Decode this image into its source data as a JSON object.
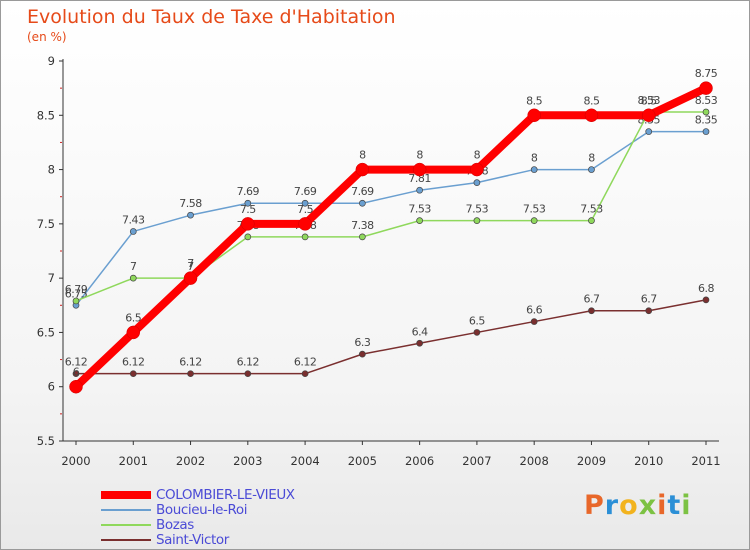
{
  "header": {
    "title": "Evolution du Taux de Taxe d'Habitation",
    "unit_label": "(en %)"
  },
  "brand": {
    "text": "Proxiti",
    "colors": [
      "#e8672a",
      "#2b8fd6",
      "#f2b31e",
      "#7cc243",
      "#e8672a",
      "#2b8fd6",
      "#7cc243"
    ]
  },
  "chart_data": {
    "type": "line",
    "title": "Evolution du Taux de Taxe d'Habitation",
    "ylabel": "(en %)",
    "x": [
      "2000",
      "2001",
      "2002",
      "2003",
      "2004",
      "2005",
      "2006",
      "2007",
      "2008",
      "2009",
      "2010",
      "2011"
    ],
    "ylim": [
      5.5,
      9
    ],
    "yticks": [
      "5.5",
      "6",
      "6.5",
      "7",
      "7.5",
      "8",
      "8.5",
      "9"
    ],
    "grid": false,
    "legend_position": "bottom-left",
    "series": [
      {
        "name": "COLOMBIER-LE-VIEUX",
        "color": "#ff0000",
        "emphasis": true,
        "values": [
          6,
          6.5,
          7,
          7.5,
          7.5,
          8,
          8,
          8,
          8.5,
          8.5,
          8.5,
          8.75
        ],
        "labels": [
          "6",
          "6.5",
          "7",
          "7.5",
          "7.5",
          "8",
          "8",
          "8",
          "8.5",
          "8.5",
          "8.5",
          "8.75"
        ]
      },
      {
        "name": "Boucieu-le-Roi",
        "color": "#6a9fd0",
        "emphasis": false,
        "values": [
          6.75,
          7.43,
          7.58,
          7.69,
          7.69,
          7.69,
          7.81,
          7.88,
          8,
          8,
          8.35,
          8.35
        ],
        "labels": [
          "6.75",
          "7.43",
          "7.58",
          "7.69",
          "7.69",
          "7.69",
          "7.81",
          "7.88",
          "8",
          "8",
          "8.35",
          "8.35"
        ]
      },
      {
        "name": "Bozas",
        "color": "#8fd85c",
        "emphasis": false,
        "values": [
          6.79,
          7,
          7,
          7.38,
          7.38,
          7.38,
          7.53,
          7.53,
          7.53,
          7.53,
          8.53,
          8.53
        ],
        "labels": [
          "6.79",
          "7",
          "7",
          "7.38",
          "7.38",
          "7.38",
          "7.53",
          "7.53",
          "7.53",
          "7.53",
          "8.53",
          "8.53"
        ]
      },
      {
        "name": "Saint-Victor",
        "color": "#7a2f2f",
        "emphasis": false,
        "values": [
          6.12,
          6.12,
          6.12,
          6.12,
          6.12,
          6.3,
          6.4,
          6.5,
          6.6,
          6.7,
          6.7,
          6.8
        ],
        "labels": [
          "6.12",
          "6.12",
          "6.12",
          "6.12",
          "6.12",
          "6.3",
          "6.4",
          "6.5",
          "6.6",
          "6.7",
          "6.7",
          "6.8"
        ]
      }
    ]
  }
}
